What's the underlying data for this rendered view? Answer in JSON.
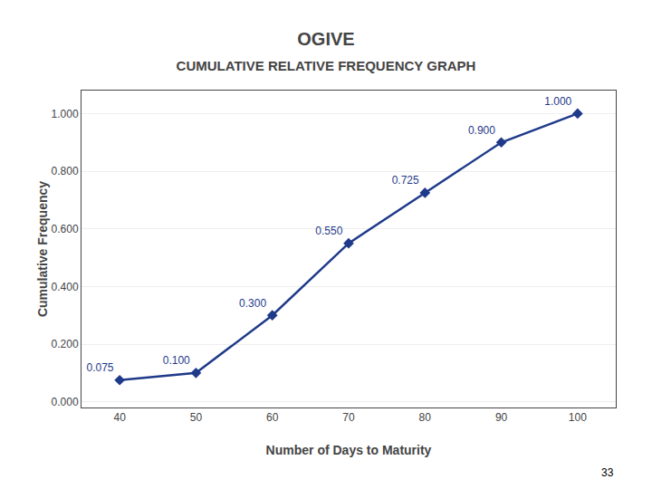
{
  "chart_data": {
    "type": "line",
    "title": "OGIVE",
    "subtitle": "CUMULATIVE RELATIVE FREQUENCY GRAPH",
    "xlabel": "Number of Days to Maturity",
    "ylabel": "Cumulative Frequency",
    "x": [
      40,
      50,
      60,
      70,
      80,
      90,
      100
    ],
    "values": [
      0.075,
      0.1,
      0.3,
      0.55,
      0.725,
      0.9,
      1.0
    ],
    "value_labels": [
      "0.075",
      "0.100",
      "0.300",
      "0.550",
      "0.725",
      "0.900",
      "1.000"
    ],
    "data_labels": true,
    "color": "#1F3A8A",
    "marker": "diamond",
    "line_style": "solid",
    "xlim": [
      35,
      105
    ],
    "xticks": [
      40,
      50,
      60,
      70,
      80,
      90,
      100
    ],
    "ylim": [
      -0.02,
      1.08
    ],
    "yticks": [
      {
        "value": 0.0,
        "label": "0.000"
      },
      {
        "value": 0.2,
        "label": "0.200"
      },
      {
        "value": 0.4,
        "label": "0.400"
      },
      {
        "value": 0.6,
        "label": "0.600"
      },
      {
        "value": 0.8,
        "label": "0.800"
      },
      {
        "value": 1.0,
        "label": "1.000"
      }
    ],
    "grid": "y",
    "annotations": [
      "33"
    ]
  }
}
